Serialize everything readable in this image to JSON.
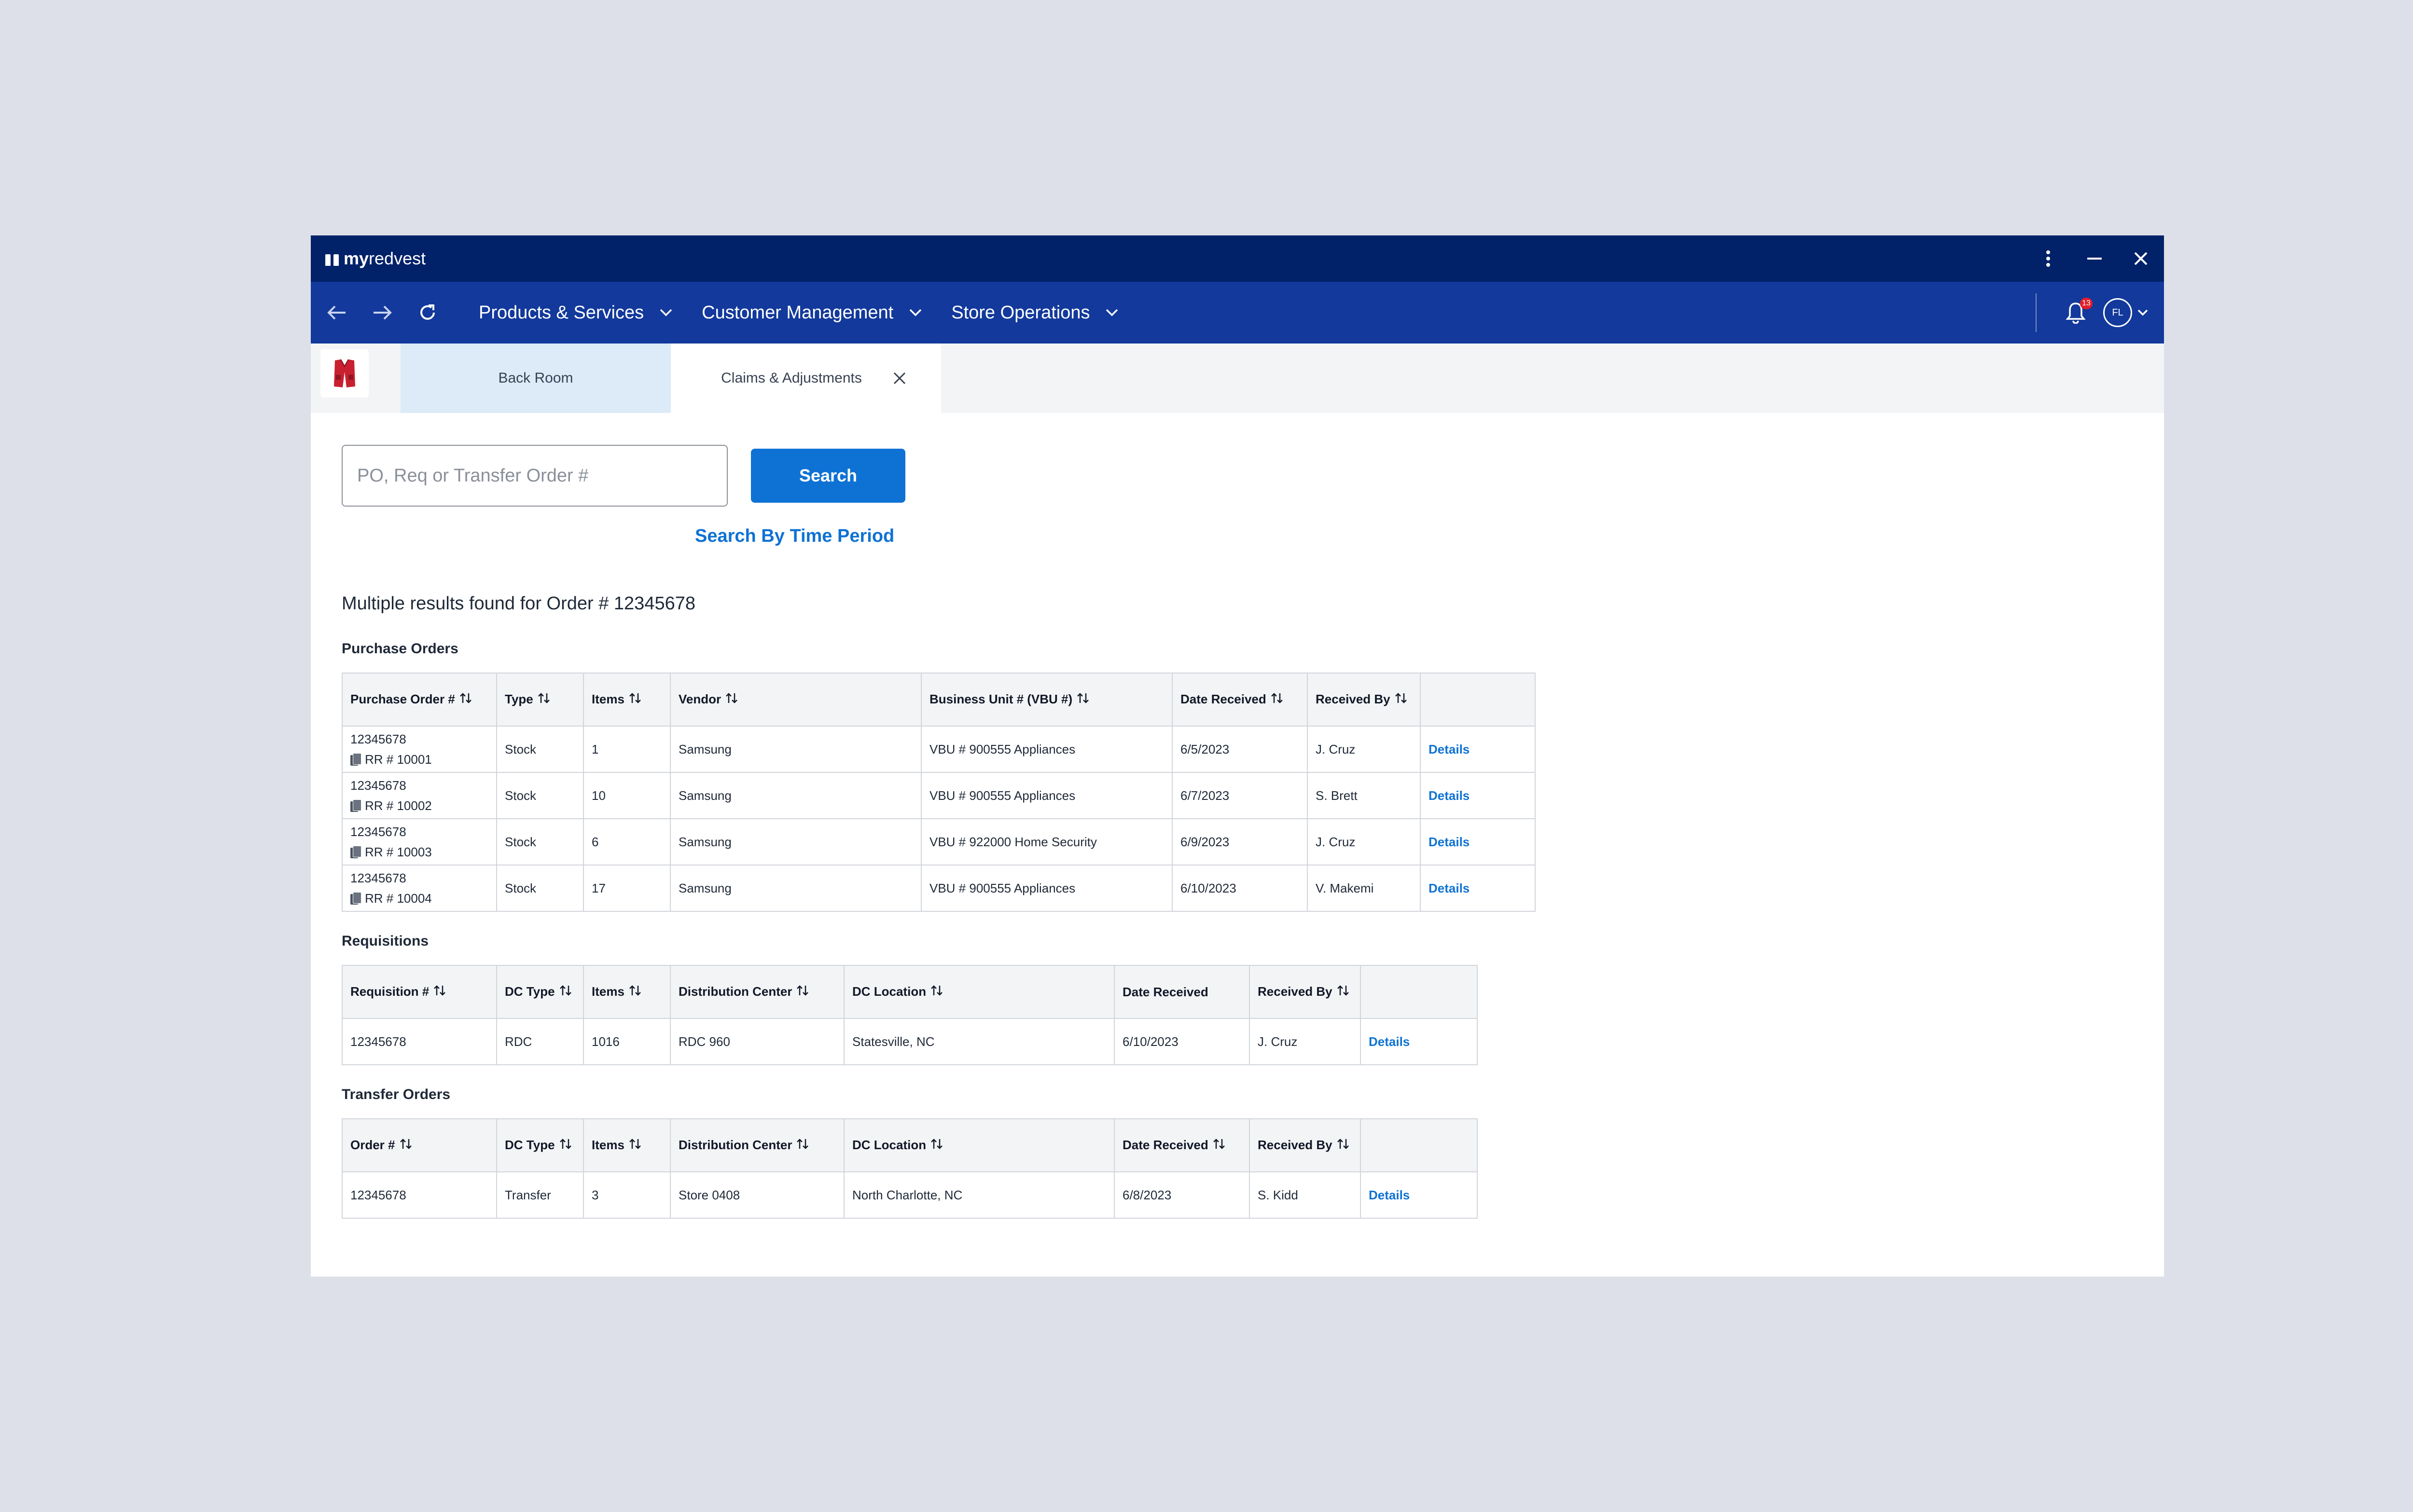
{
  "titlebar": {
    "brand_my": "my",
    "brand_name": "redvest"
  },
  "nav": {
    "menu": [
      {
        "label": "Products & Services"
      },
      {
        "label": "Customer Management"
      },
      {
        "label": "Store Operations"
      }
    ],
    "notification_count": "13",
    "avatar_initials": "FL"
  },
  "tabs": [
    {
      "label": "Back Room"
    },
    {
      "label": "Claims & Adjustments"
    }
  ],
  "search": {
    "placeholder": "PO, Req or Transfer Order #",
    "value": "",
    "button_label": "Search",
    "time_period_link": "Search By Time Period"
  },
  "results_title": "Multiple results found for Order # 12345678",
  "purchase_orders": {
    "label": "Purchase Orders",
    "headers": [
      "Purchase Order #",
      "Type",
      "Items",
      "Vendor",
      "Business Unit # (VBU #)",
      "Date Received",
      "Received By"
    ],
    "rows": [
      {
        "po": "12345678",
        "rr": "RR # 10001",
        "type": "Stock",
        "items": "1",
        "vendor": "Samsung",
        "vbu": "VBU # 900555 Appliances",
        "date": "6/5/2023",
        "by": "J. Cruz",
        "action": "Details"
      },
      {
        "po": "12345678",
        "rr": "RR # 10002",
        "type": "Stock",
        "items": "10",
        "vendor": "Samsung",
        "vbu": "VBU # 900555 Appliances",
        "date": "6/7/2023",
        "by": "S. Brett",
        "action": "Details"
      },
      {
        "po": "12345678",
        "rr": "RR # 10003",
        "type": "Stock",
        "items": "6",
        "vendor": "Samsung",
        "vbu": "VBU # 922000 Home Security",
        "date": "6/9/2023",
        "by": "J. Cruz",
        "action": "Details"
      },
      {
        "po": "12345678",
        "rr": "RR # 10004",
        "type": "Stock",
        "items": "17",
        "vendor": "Samsung",
        "vbu": "VBU # 900555 Appliances",
        "date": "6/10/2023",
        "by": "V. Makemi",
        "action": "Details"
      }
    ]
  },
  "requisitions": {
    "label": "Requisitions",
    "headers": [
      "Requisition #",
      "DC Type",
      "Items",
      "Distribution Center",
      "DC Location",
      "Date Received",
      "Received By"
    ],
    "sortable": [
      true,
      true,
      true,
      true,
      true,
      false,
      true
    ],
    "rows": [
      {
        "id": "12345678",
        "dc_type": "RDC",
        "items": "1016",
        "center": "RDC 960",
        "location": "Statesville, NC",
        "date": "6/10/2023",
        "by": "J. Cruz",
        "action": "Details"
      }
    ]
  },
  "transfer_orders": {
    "label": "Transfer Orders",
    "headers": [
      "Order #",
      "DC Type",
      "Items",
      "Distribution Center",
      "DC Location",
      "Date Received",
      "Received By"
    ],
    "rows": [
      {
        "id": "12345678",
        "dc_type": "Transfer",
        "items": "3",
        "center": "Store 0408",
        "location": "North Charlotte, NC",
        "date": "6/8/2023",
        "by": "S. Kidd",
        "action": "Details"
      }
    ]
  },
  "colors": {
    "titlebar": "#012169",
    "navbar": "#12399b",
    "accent": "#0e72d4",
    "badge": "#e11d2a"
  }
}
